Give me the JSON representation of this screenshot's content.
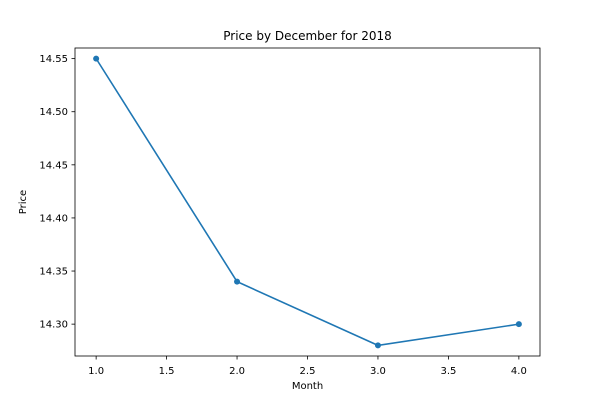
{
  "chart_data": {
    "type": "line",
    "title": "Price by December for 2018",
    "xlabel": "Month",
    "ylabel": "Price",
    "xlim": [
      0.85,
      4.15
    ],
    "ylim": [
      14.27,
      14.56
    ],
    "x_ticks": [
      1.0,
      1.5,
      2.0,
      2.5,
      3.0,
      3.5,
      4.0
    ],
    "x_tick_labels": [
      "1.0",
      "1.5",
      "2.0",
      "2.5",
      "3.0",
      "3.5",
      "4.0"
    ],
    "y_ticks": [
      14.3,
      14.35,
      14.4,
      14.45,
      14.5,
      14.55
    ],
    "y_tick_labels": [
      "14.30",
      "14.35",
      "14.40",
      "14.45",
      "14.50",
      "14.55"
    ],
    "grid": false,
    "series": [
      {
        "color": "#1f77b4",
        "marker": "circle",
        "points": [
          {
            "x": 1.0,
            "y": 14.55
          },
          {
            "x": 2.0,
            "y": 14.34
          },
          {
            "x": 3.0,
            "y": 14.28
          },
          {
            "x": 4.0,
            "y": 14.3
          }
        ]
      }
    ]
  }
}
